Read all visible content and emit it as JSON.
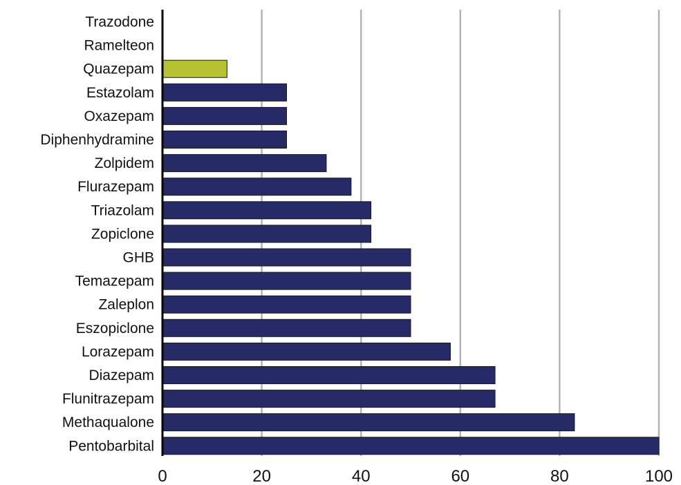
{
  "chart_data": {
    "type": "bar",
    "orientation": "horizontal",
    "title": "",
    "xlabel": "",
    "ylabel": "",
    "xlim": [
      0,
      100
    ],
    "grid": true,
    "legend": "none",
    "xticks": [
      0,
      20,
      40,
      60,
      80,
      100
    ],
    "categories": [
      "Trazodone",
      "Ramelteon",
      "Quazepam",
      "Estazolam",
      "Oxazepam",
      "Diphenhydramine",
      "Zolpidem",
      "Flurazepam",
      "Triazolam",
      "Zopiclone",
      "GHB",
      "Temazepam",
      "Zaleplon",
      "Eszopiclone",
      "Lorazepam",
      "Diazepam",
      "Flunitrazepam",
      "Methaqualone",
      "Pentobarbital"
    ],
    "values": [
      0,
      0,
      13,
      25,
      25,
      25,
      33,
      38,
      42,
      42,
      50,
      50,
      50,
      50,
      58,
      67,
      67,
      83,
      100
    ],
    "highlight_category": "Quazepam",
    "colors": {
      "bar": "#262a66",
      "highlight": "#b5c232",
      "grid": "#b3b3b3",
      "axis": "#000000"
    }
  }
}
